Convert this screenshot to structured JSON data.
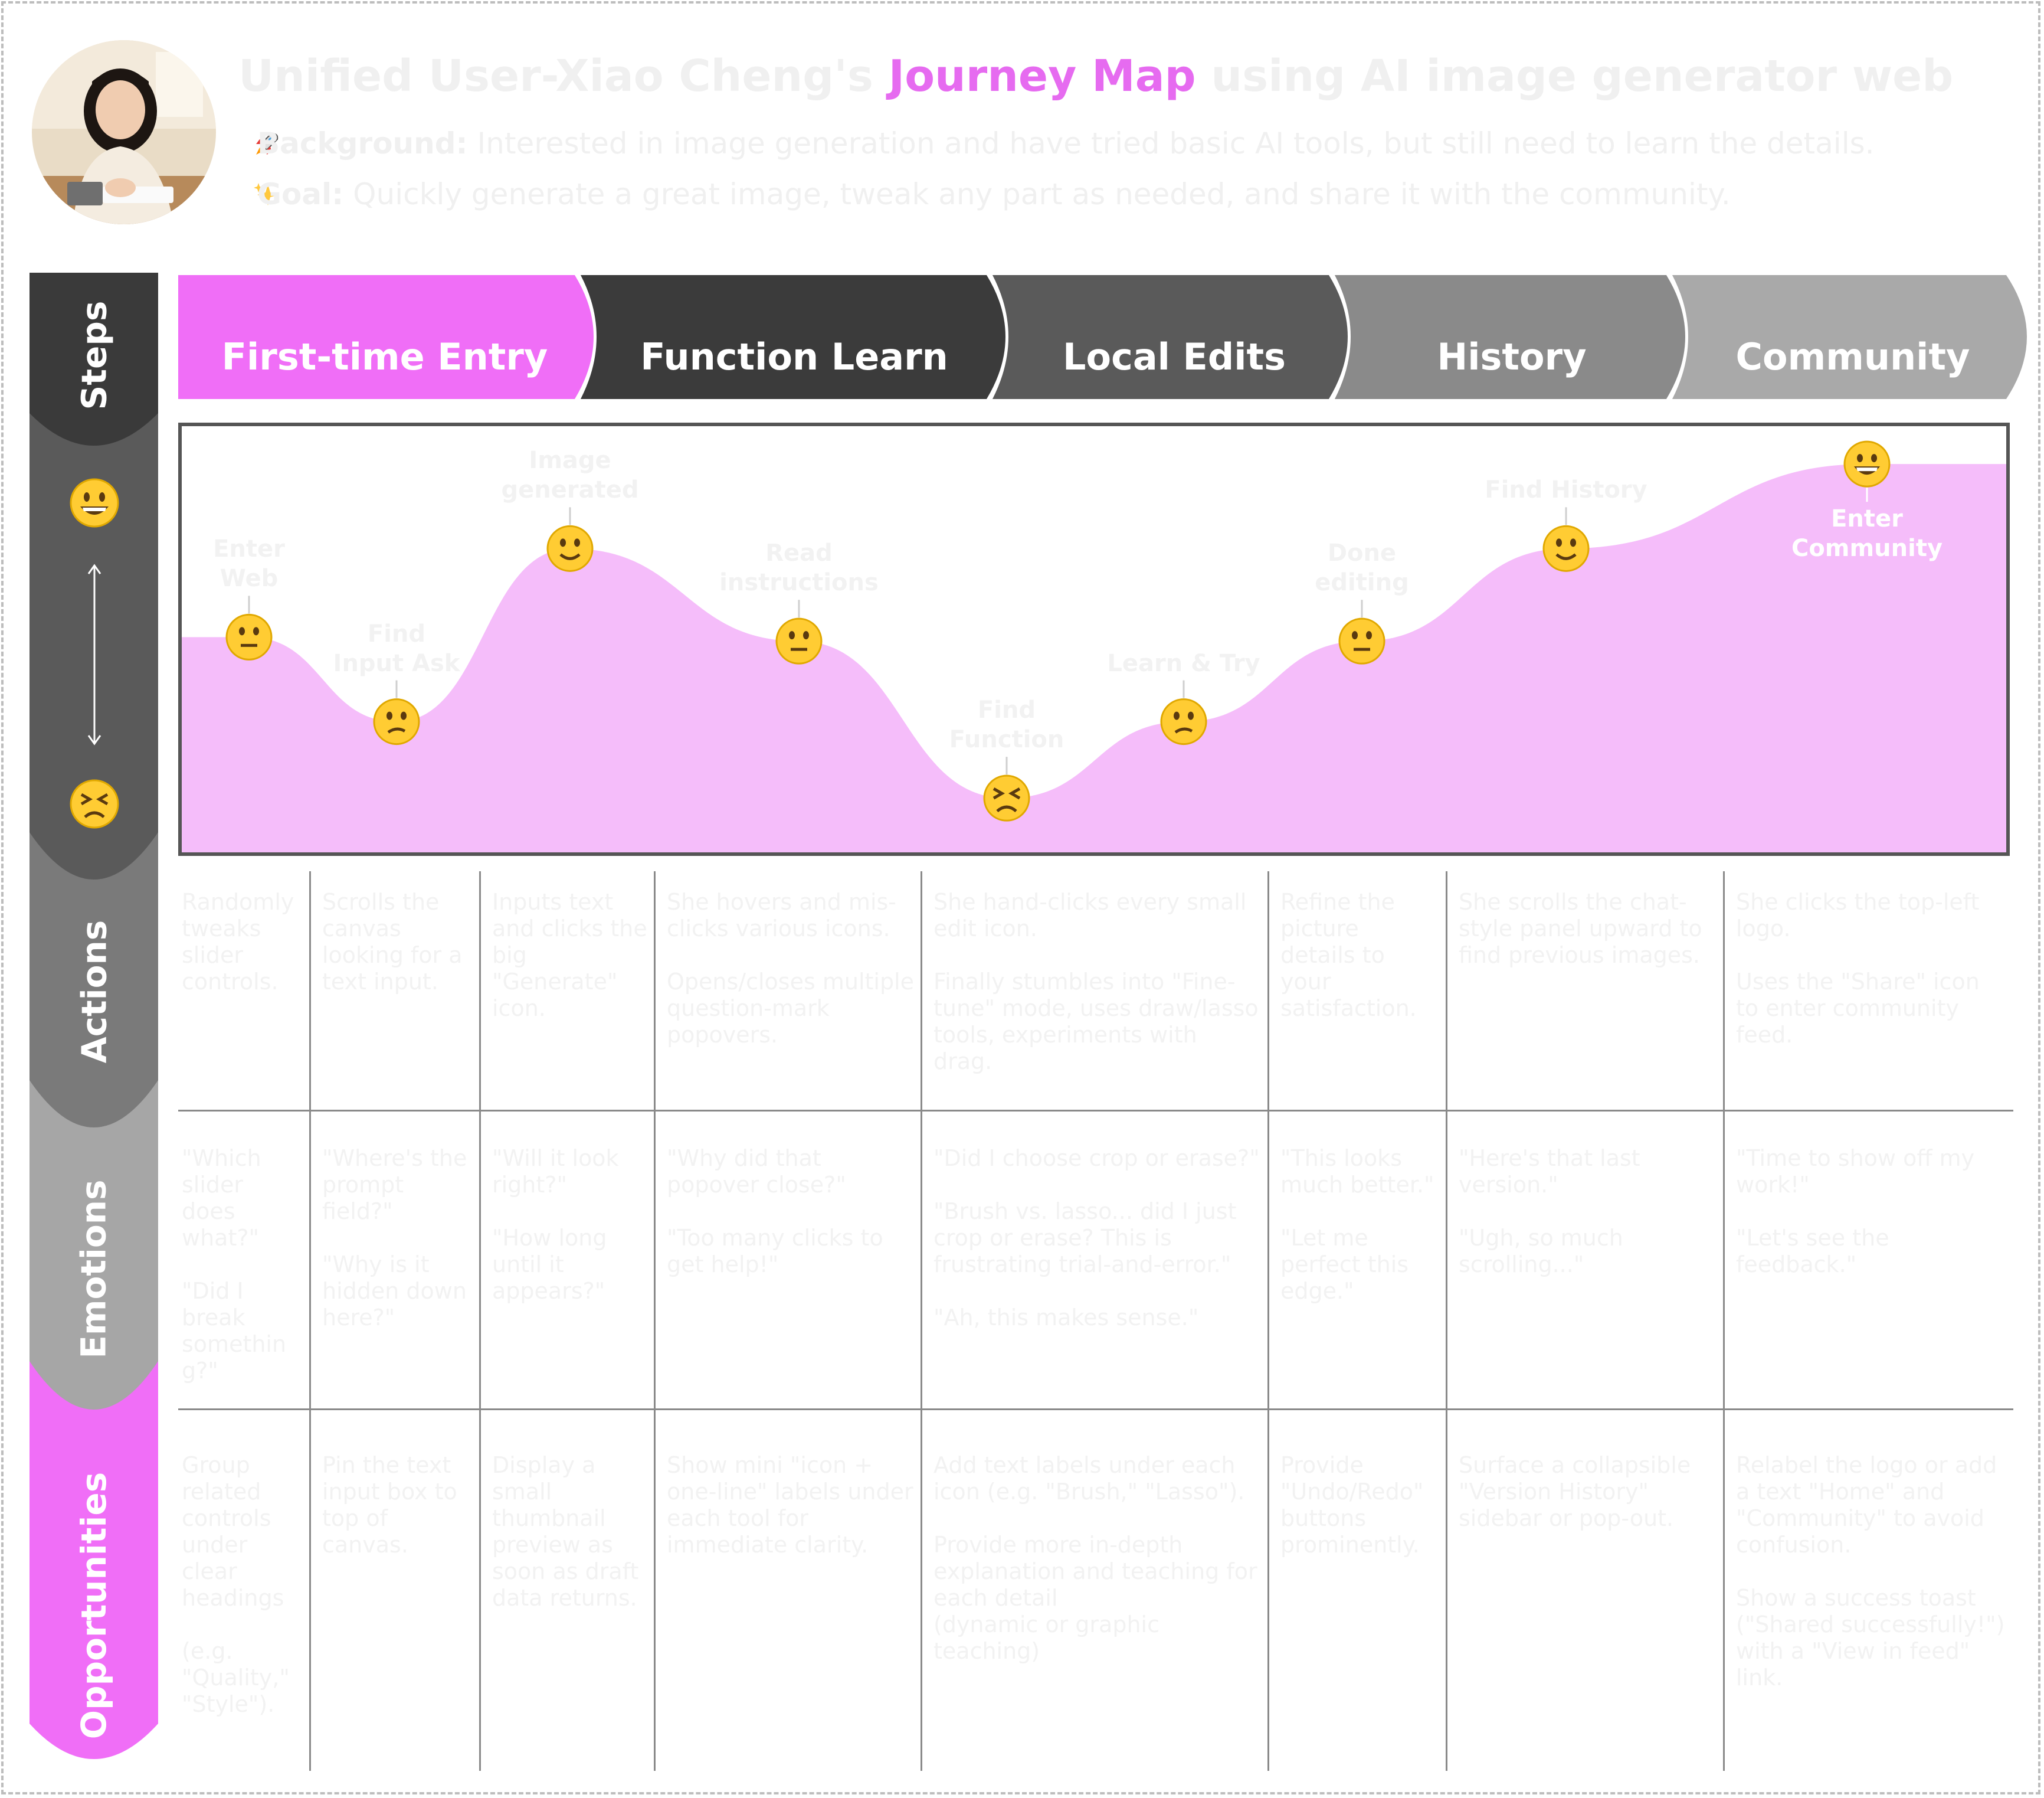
{
  "persona": {
    "title_prefix": "Unified User-Xiao Cheng's",
    "title_accent": "Journey Map",
    "title_suffix": "using AI image generator web",
    "background_label": "Background:",
    "background_text": "Interested in image generation and have tried basic AI tools, but still need to learn the details.",
    "goal_label": "Goal:",
    "goal_text": "Quickly generate a great image, tweak any part as needed, and share it with the community.",
    "background_icon": "rocket-icon",
    "goal_icon": "sparkles-icon"
  },
  "rows": {
    "steps": "Steps",
    "actions": "Actions",
    "emotions": "Emotions",
    "opportunities": "Opportunities"
  },
  "steps": [
    {
      "label": "First-time Entry",
      "color": "#f06ef7"
    },
    {
      "label": "Function Learn",
      "color": "#3b3b3b"
    },
    {
      "label": "Local Edits",
      "color": "#5a5a5a"
    },
    {
      "label": "History",
      "color": "#8a8a8a"
    },
    {
      "label": "Community",
      "color": "#a9a9a9"
    }
  ],
  "colors": {
    "accent": "#e66bf0",
    "curve_fill": "#f5bdfa",
    "steps_band": "#3a3a3a",
    "emotion_band": "#5a5a5a",
    "actions_band": "#7a7a7a",
    "emotions_band": "#a6a6a6",
    "opportunities_band": "#f06ef7"
  },
  "chart_data": {
    "type": "area",
    "ylabel_top": "happy-face",
    "ylabel_bottom": "frustrated-face",
    "points": [
      {
        "label": "Enter\nWeb",
        "mood": "neutral",
        "level": 0.52
      },
      {
        "label": "Find\nInput Ask",
        "mood": "confused",
        "level": 0.31
      },
      {
        "label": "Image\ngenerated",
        "mood": "happy",
        "level": 0.74
      },
      {
        "label": "Read\ninstructions",
        "mood": "neutral",
        "level": 0.51
      },
      {
        "label": "Find\nFunction",
        "mood": "frustrated",
        "level": 0.12
      },
      {
        "label": "Learn & Try",
        "mood": "confused",
        "level": 0.31
      },
      {
        "label": "Done\nediting",
        "mood": "neutral",
        "level": 0.51
      },
      {
        "label": "Find History",
        "mood": "happy",
        "level": 0.74
      },
      {
        "label": "Enter\nCommunity",
        "mood": "grinning",
        "level": 0.95
      }
    ]
  },
  "actions": [
    "Randomly tweaks slider controls.",
    "Scrolls the canvas looking for a text input.",
    "Inputs text and clicks the big \"Generate\" icon.",
    "She hovers and mis-clicks various icons.\n\nOpens/closes multiple question-mark popovers.",
    "She hand-clicks every small edit icon.\n\nFinally stumbles into \"Fine-tune\" mode, uses draw/lasso tools, experiments with drag.",
    "Refine the picture details to your satisfaction.",
    "She scrolls the chat-style panel upward to find previous images.",
    "She clicks the top-left logo.\n\nUses the \"Share\" icon to enter community feed."
  ],
  "emotions": [
    "\"Which slider does what?\"\n\n\"Did I break somethin g?\"",
    "\"Where's the prompt field?\"\n\n\"Why is it hidden down here?\"",
    "\"Will it look right?\"\n\n\"How long until it appears?\"",
    "\"Why did that popover close?\"\n\n\"Too many clicks to get help!\"",
    "\"Did I choose crop or erase?\"\n\n\"Brush vs. lasso... did I just crop or erase? This is frustrating trial-and-error.\"\n\n\"Ah, this makes sense.\"",
    "\"This looks much better.\"\n\n\"Let me perfect this edge.\"",
    "\"Here's that last version.\"\n\n\"Ugh, so much scrolling...\"",
    "\"Time to show off my work!\"\n\n\"Let's see the feedback.\""
  ],
  "opportunities": [
    "Group related controls under clear headings\n\n(e.g. \"Quality,\" \"Style\").",
    "Pin the text input box to top of canvas.",
    "Display a small thumbnail preview as soon as draft data returns.",
    "Show mini \"icon + one-line\" labels under each tool for immediate clarity.",
    "Add text labels under each icon (e.g. \"Brush,\" \"Lasso\").\n\nProvide more in-depth explanation and teaching for each detail\n(dynamic or graphic teaching)",
    "Provide \"Undo/Redo\" buttons prominently.",
    "Surface a collapsible \"Version History\" sidebar or pop-out.",
    "Relabel the logo or add a text \"Home\" and \"Community\" to avoid confusion.\n\nShow a success toast (\"Shared successfully!\") with a \"View in feed\" link."
  ]
}
